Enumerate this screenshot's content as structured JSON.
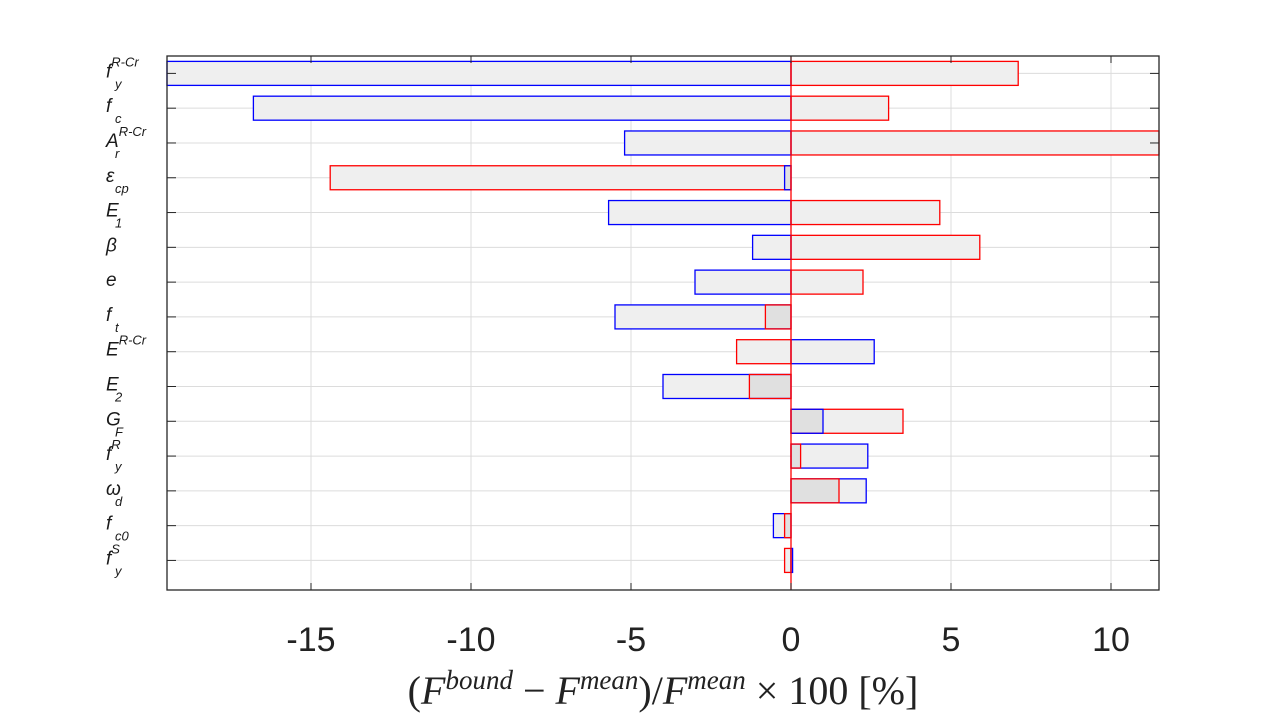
{
  "chart_data": {
    "type": "bar",
    "orientation": "horizontal",
    "chart_style": "tornado",
    "xlim": [
      -19.5,
      11.5
    ],
    "xticks": [
      -15,
      -10,
      -5,
      0,
      5,
      10
    ],
    "xtick_labels": [
      "-15",
      "-10",
      "-5",
      "0",
      "5",
      "10"
    ],
    "grid": true,
    "xlabel": {
      "F_base": "F",
      "bound_sup": "bound",
      "mean_sup": "mean",
      "open_paren": "(",
      "minus": "−",
      "close_paren_slash": ")/",
      "times": "×",
      "hundred": "100",
      "percent": "[%]"
    },
    "categories": [
      {
        "base": "f",
        "sub": "y",
        "sup": "R-Cr"
      },
      {
        "base": "f",
        "sub": "c",
        "sup": ""
      },
      {
        "base": "A",
        "sub": "r",
        "sup": "R-Cr"
      },
      {
        "base": "ε",
        "sub": "cp",
        "sup": ""
      },
      {
        "base": "E",
        "sub": "1",
        "sup": ""
      },
      {
        "base": "β",
        "sub": "",
        "sup": ""
      },
      {
        "base": "e",
        "sub": "",
        "sup": ""
      },
      {
        "base": "f",
        "sub": "t",
        "sup": ""
      },
      {
        "base": "E",
        "sub": "",
        "sup": "R-Cr"
      },
      {
        "base": "E",
        "sub": "2",
        "sup": ""
      },
      {
        "base": "G",
        "sub": "F",
        "sup": ""
      },
      {
        "base": "f",
        "sub": "y",
        "sup": "R"
      },
      {
        "base": "ω",
        "sub": "d",
        "sup": ""
      },
      {
        "base": "f",
        "sub": "c0",
        "sup": ""
      },
      {
        "base": "f",
        "sub": "y",
        "sup": "S"
      }
    ],
    "series": [
      {
        "color": "#0000ff",
        "values": [
          -19.5,
          -16.8,
          -5.2,
          -0.2,
          -5.7,
          -1.2,
          -3.0,
          -5.5,
          2.6,
          -4.0,
          1.0,
          2.4,
          2.35,
          -0.55,
          0.05
        ]
      },
      {
        "color": "#ff0000",
        "values": [
          7.1,
          3.05,
          11.5,
          -14.4,
          4.65,
          5.9,
          2.25,
          -0.8,
          -1.7,
          -1.3,
          3.5,
          0.3,
          1.5,
          -0.2,
          -0.2
        ]
      }
    ],
    "bar_fill": "#efefef",
    "overlap_fill": "#e0e0e0"
  }
}
